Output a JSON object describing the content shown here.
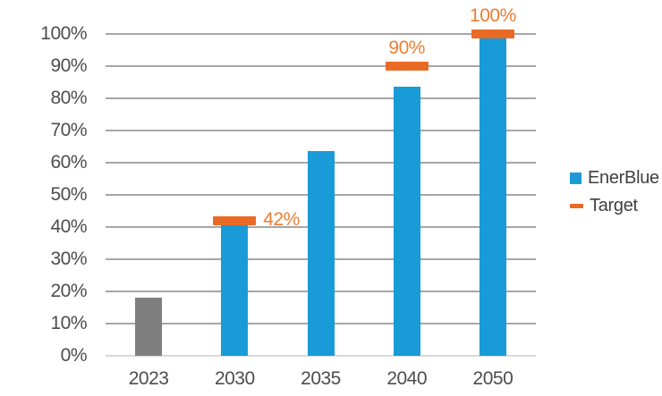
{
  "chart_data": {
    "type": "bar",
    "title": "",
    "categories": [
      "2023",
      "2030",
      "2035",
      "2040",
      "2050"
    ],
    "series": [
      {
        "name": "EnerBlue",
        "type": "bar",
        "values": [
          18,
          41,
          63.5,
          83.5,
          100
        ],
        "point_colors": [
          "#7F7F7F",
          "#189BD7",
          "#189BD7",
          "#189BD7",
          "#189BD7"
        ]
      },
      {
        "name": "Target",
        "type": "tick-marker",
        "values": [
          null,
          42,
          null,
          90,
          100
        ],
        "color": "#E96A25"
      }
    ],
    "data_labels": [
      {
        "category": "2030",
        "text": "42%",
        "value": 42,
        "placement": "right"
      },
      {
        "category": "2040",
        "text": "90%",
        "value": 90,
        "placement": "above"
      },
      {
        "category": "2050",
        "text": "100%",
        "value": 100,
        "placement": "above"
      }
    ],
    "y_axis": {
      "min": 0,
      "max": 100,
      "step": 10,
      "tick_labels": [
        "0%",
        "10%",
        "20%",
        "30%",
        "40%",
        "50%",
        "60%",
        "70%",
        "80%",
        "90%",
        "100%"
      ],
      "grid": true
    },
    "x_axis": {
      "labels": [
        "2023",
        "2030",
        "2035",
        "2040",
        "2050"
      ]
    },
    "legend": {
      "position": "right",
      "items": [
        {
          "label": "EnerBlue",
          "swatch": "square",
          "color": "#189BD7"
        },
        {
          "label": "Target",
          "swatch": "dash",
          "color": "#E96A25"
        }
      ]
    }
  },
  "colors": {
    "enerblue": "#189BD7",
    "historical_gray": "#7F7F7F",
    "target_orange": "#E96A25",
    "data_label_orange": "#ED7D31",
    "gridline": "#A6A6A6",
    "axis_line": "#D9D9D9",
    "axis_text": "#4D4D4D",
    "legend_text": "#404040",
    "background": "#FFFFFF"
  }
}
